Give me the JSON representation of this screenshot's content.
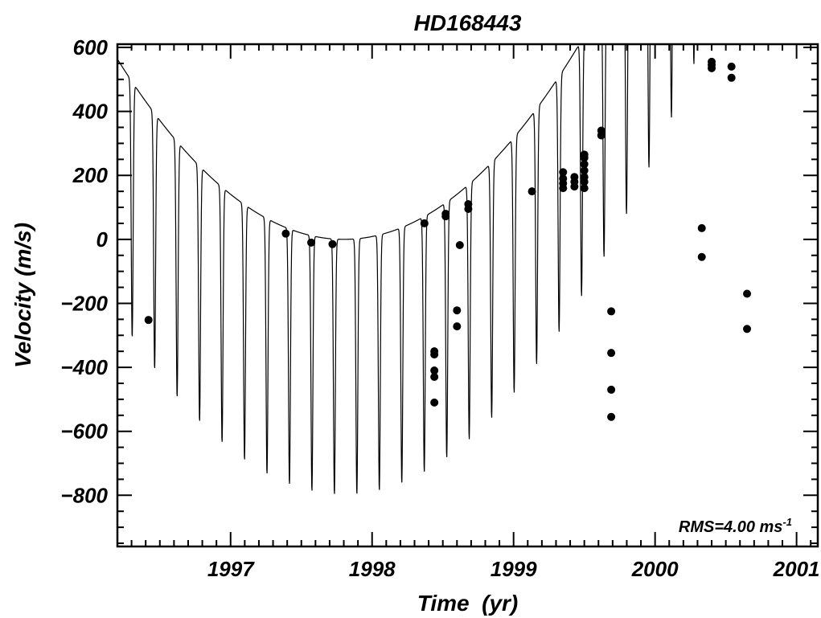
{
  "chart_data": {
    "type": "scatter",
    "title": "HD168443",
    "xlabel": "Time  (yr)",
    "ylabel": "Velocity (m/s)",
    "xlim": [
      1996.2,
      2001.15
    ],
    "ylim": [
      -960,
      610
    ],
    "x_ticks": [
      1997,
      1998,
      1999,
      2000,
      2001
    ],
    "y_ticks": [
      -800,
      -600,
      -400,
      -200,
      0,
      200,
      400,
      600
    ],
    "grid": false,
    "legend": "none",
    "annotation": {
      "text": "RMS=4.00 ms",
      "sup": "-1",
      "placement": "bottom-right"
    },
    "fit_model": {
      "period_yr": 0.1588,
      "phase_ref": 1996.225,
      "trend_center": 1997.8,
      "trend_curvature": 220,
      "trend_offset": -100,
      "upper_amplitude": 100,
      "lower_amplitude": 800,
      "lower_width": 0.12,
      "points_per_cycle": 80
    },
    "series": [
      {
        "style": "points",
        "points": [
          [
            1996.42,
            -252
          ],
          [
            1997.39,
            18
          ],
          [
            1997.57,
            -10
          ],
          [
            1997.72,
            -15
          ],
          [
            1998.37,
            50
          ],
          [
            1998.44,
            -350
          ],
          [
            1998.44,
            -360
          ],
          [
            1998.44,
            -410
          ],
          [
            1998.44,
            -430
          ],
          [
            1998.44,
            -510
          ],
          [
            1998.52,
            80
          ],
          [
            1998.52,
            72
          ],
          [
            1998.6,
            -222
          ],
          [
            1998.6,
            -272
          ],
          [
            1998.62,
            -18
          ],
          [
            1998.68,
            110
          ],
          [
            1998.68,
            95
          ],
          [
            1999.13,
            150
          ],
          [
            1999.35,
            210
          ],
          [
            1999.35,
            190
          ],
          [
            1999.35,
            175
          ],
          [
            1999.35,
            160
          ],
          [
            1999.43,
            195
          ],
          [
            1999.43,
            180
          ],
          [
            1999.43,
            165
          ],
          [
            1999.5,
            265
          ],
          [
            1999.5,
            255
          ],
          [
            1999.5,
            235
          ],
          [
            1999.5,
            215
          ],
          [
            1999.5,
            195
          ],
          [
            1999.5,
            180
          ],
          [
            1999.5,
            160
          ],
          [
            1999.62,
            340
          ],
          [
            1999.62,
            325
          ],
          [
            1999.69,
            -225
          ],
          [
            1999.69,
            -355
          ],
          [
            1999.69,
            -470
          ],
          [
            1999.69,
            -555
          ],
          [
            2000.33,
            35
          ],
          [
            2000.33,
            -55
          ],
          [
            2000.4,
            555
          ],
          [
            2000.4,
            545
          ],
          [
            2000.4,
            535
          ],
          [
            2000.54,
            540
          ],
          [
            2000.54,
            505
          ],
          [
            2000.65,
            -170
          ],
          [
            2000.65,
            -280
          ]
        ]
      }
    ]
  }
}
